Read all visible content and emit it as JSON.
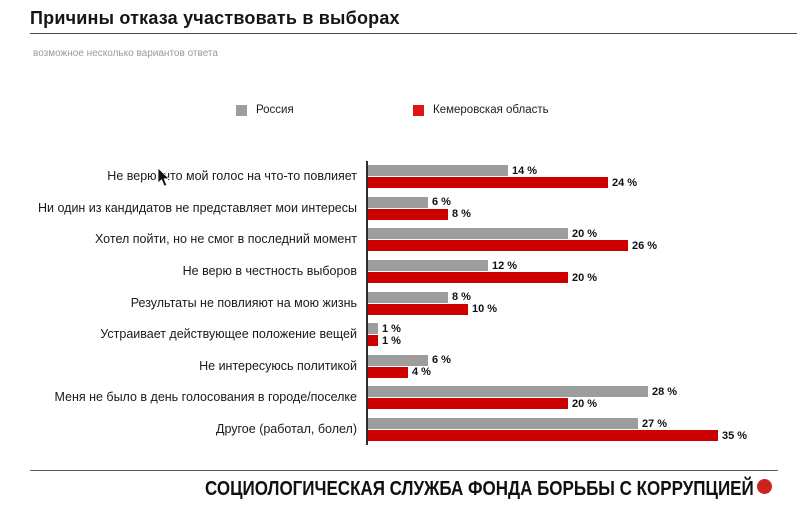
{
  "title": "Причины отказа участвовать в выборах",
  "subtitle": "возможное несколько вариантов ответа",
  "legend": {
    "russia_label": "Россия",
    "kemerovo_label": "Кемеровская область"
  },
  "footer": {
    "text": "СОЦИОЛОГИЧЕСКАЯ СЛУЖБА ФОНДА БОРЬБЫ С КОРРУПЦИЕЙ"
  },
  "colors": {
    "russia_bar": "#9d9d9d",
    "kemerovo_bar": "#cc0001",
    "legend_red_swatch": "#e01412",
    "legend_gray_swatch": "#9d9d9d",
    "footer_dot": "#cc2222",
    "axis_line": "#2e2e2e"
  },
  "chart_data": {
    "type": "bar",
    "orientation": "horizontal",
    "title": "Причины отказа участвовать в выборах",
    "subtitle": "возможное несколько вариантов ответа",
    "categories": [
      "Не верю, что мой голос на что-то повлияет",
      "Ни один из кандидатов не представляет мои интересы",
      "Хотел пойти, но не смог в последний момент",
      "Не верю в честность выборов",
      "Результаты не повлияют на мою жизнь",
      "Устраивает действующее положение вещей",
      "Не интересуюсь политикой",
      "Меня не было в день голосования в городе/поселке",
      "Другое (работал, болел)"
    ],
    "series": [
      {
        "name": "Россия",
        "color": "#9d9d9d",
        "values": [
          14,
          6,
          20,
          12,
          8,
          1,
          6,
          28,
          27
        ]
      },
      {
        "name": "Кемеровская область",
        "color": "#cc0001",
        "values": [
          24,
          8,
          26,
          20,
          10,
          1,
          4,
          20,
          35
        ]
      }
    ],
    "value_suffix": " %",
    "xlim": [
      0,
      35
    ],
    "grid": false,
    "legend_position": "top",
    "value_labels": true
  }
}
